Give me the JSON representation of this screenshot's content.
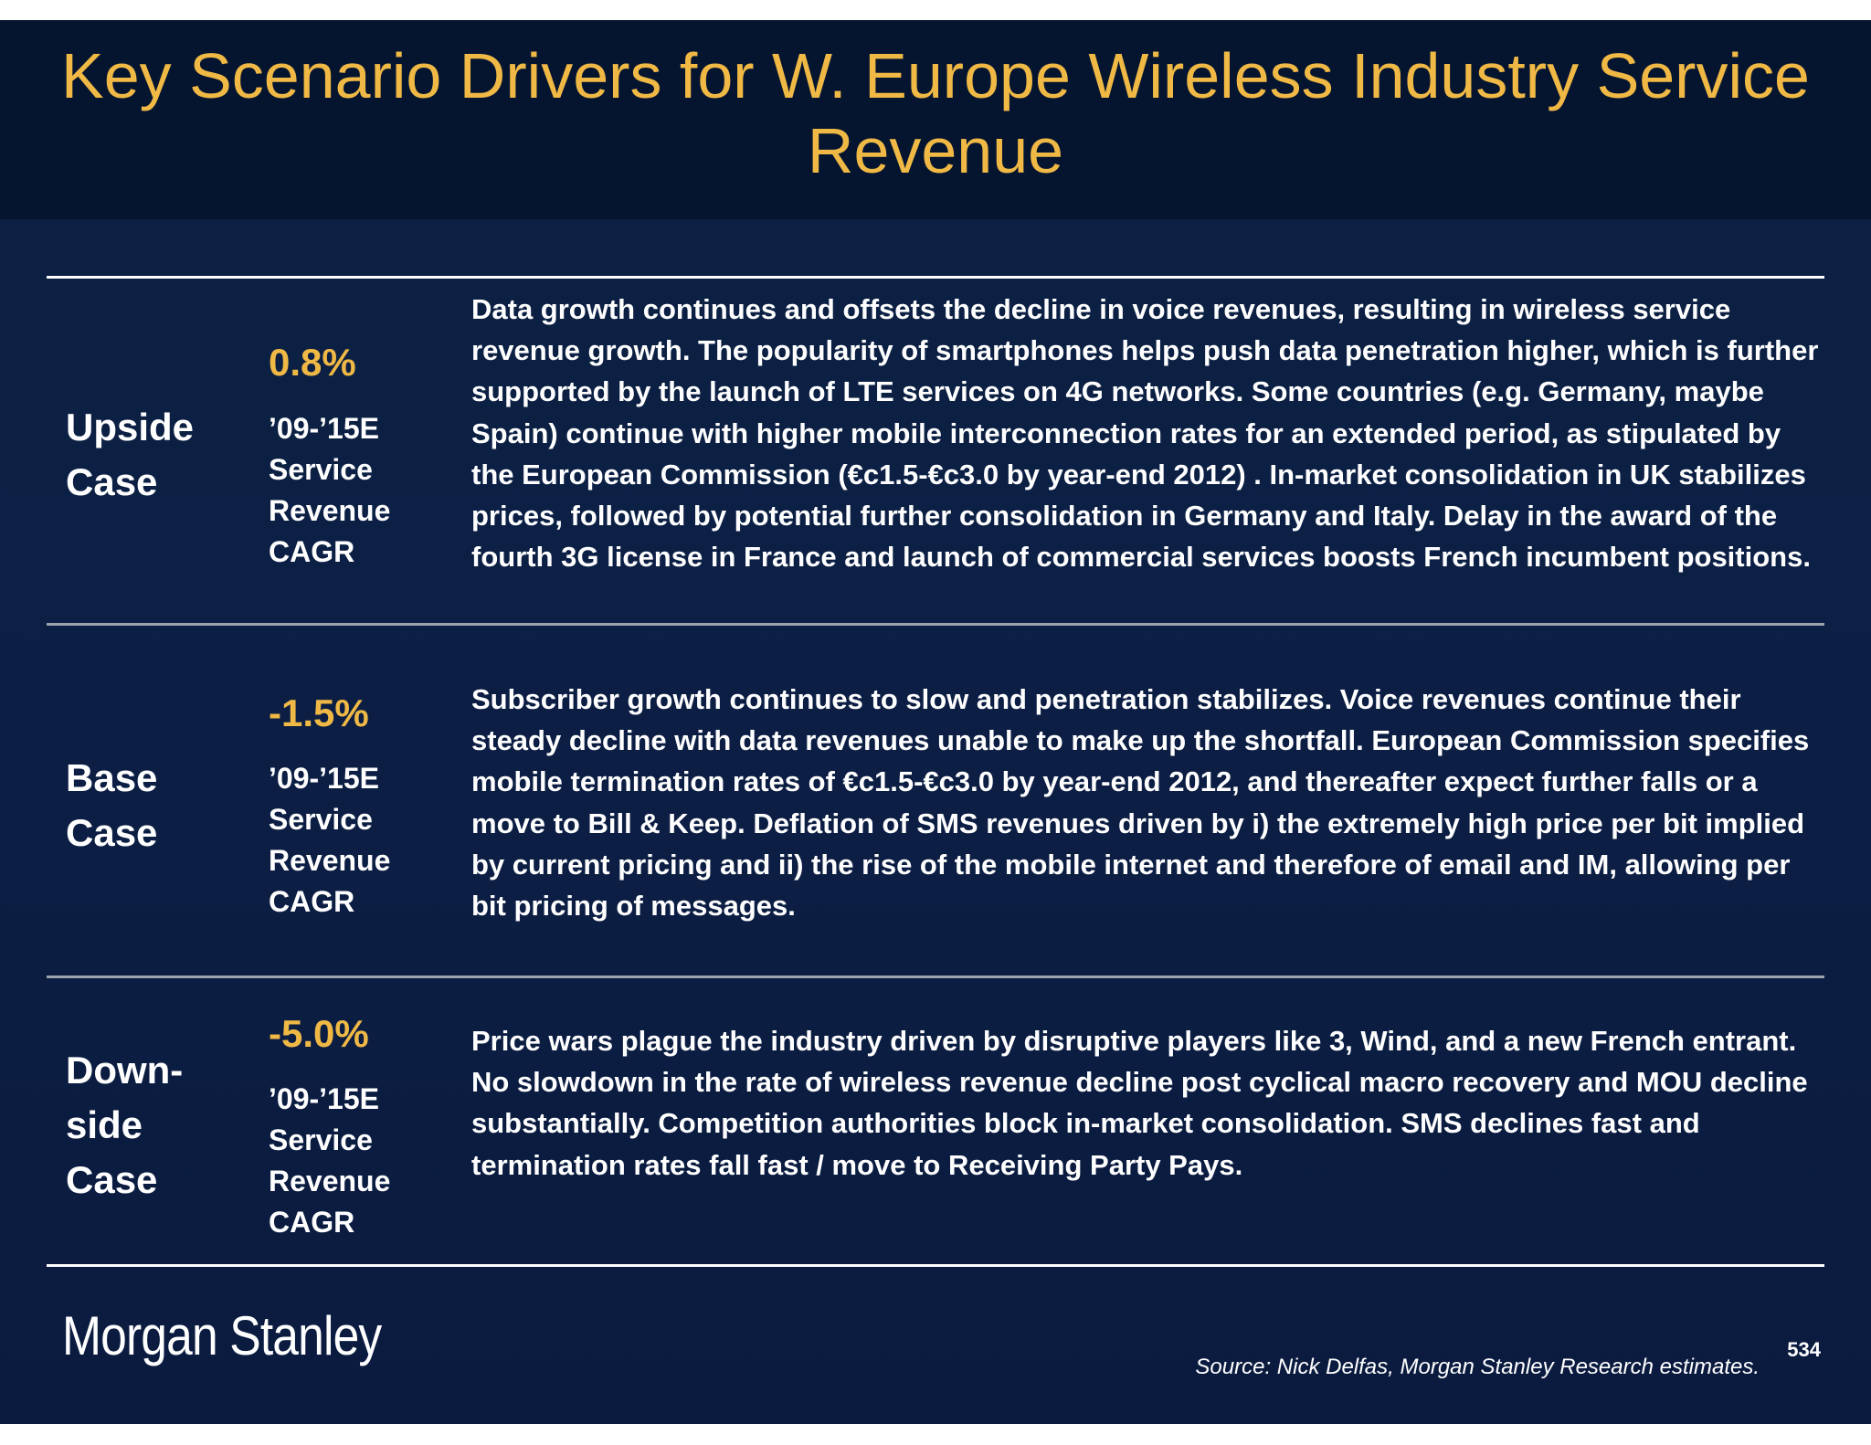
{
  "title": "Key Scenario Drivers for W. Europe Wireless Industry Service Revenue",
  "cases": [
    {
      "label": "Upside Case",
      "cagr": "0.8%",
      "cagr_sub": "’09-’15E\nService\nRevenue\nCAGR",
      "description": "Data growth continues and offsets the decline in voice revenues, resulting in wireless service revenue growth.  The popularity of smartphones helps push data penetration higher, which is further supported by the launch of LTE services on 4G networks.  Some countries (e.g. Germany, maybe Spain) continue with higher mobile interconnection rates for an extended period, as stipulated by the European Commission (€c1.5-€c3.0 by year-end 2012) . In-market consolidation in UK stabilizes prices, followed by potential further consolidation in Germany and Italy.  Delay in the award of the fourth 3G license in France and launch of commercial services boosts French incumbent positions."
    },
    {
      "label": "Base Case",
      "cagr": "-1.5%",
      "cagr_sub": "’09-’15E\nService\nRevenue\nCAGR",
      "description": "Subscriber growth continues to slow and penetration stabilizes.  Voice revenues continue their steady decline with data revenues unable to make up the shortfall. European Commission specifies mobile termination rates of €c1.5-€c3.0 by year-end 2012, and thereafter expect further falls or a move to Bill & Keep.  Deflation of SMS revenues driven by i) the extremely high price per bit implied by current pricing and ii) the rise of the mobile internet and therefore of email and IM, allowing per bit pricing of messages."
    },
    {
      "label": "Down-side Case",
      "cagr": "-5.0%",
      "cagr_sub": "’09-’15E\nService\nRevenue\nCAGR",
      "description": "Price wars plague the industry driven by disruptive players like 3, Wind, and a new French entrant.  No slowdown in the rate of wireless revenue decline post cyclical macro recovery and MOU decline substantially. Competition authorities block in-market consolidation. SMS declines fast and termination rates fall fast / move to Receiving Party Pays."
    }
  ],
  "footer": {
    "logo": "Morgan Stanley",
    "source": "Source: Nick Delfas, Morgan Stanley Research estimates.",
    "page_number": "534"
  },
  "colors": {
    "title": "#f0b945",
    "cagr": "#f0b945",
    "background": "#0b1f44",
    "title_band": "#051530"
  }
}
